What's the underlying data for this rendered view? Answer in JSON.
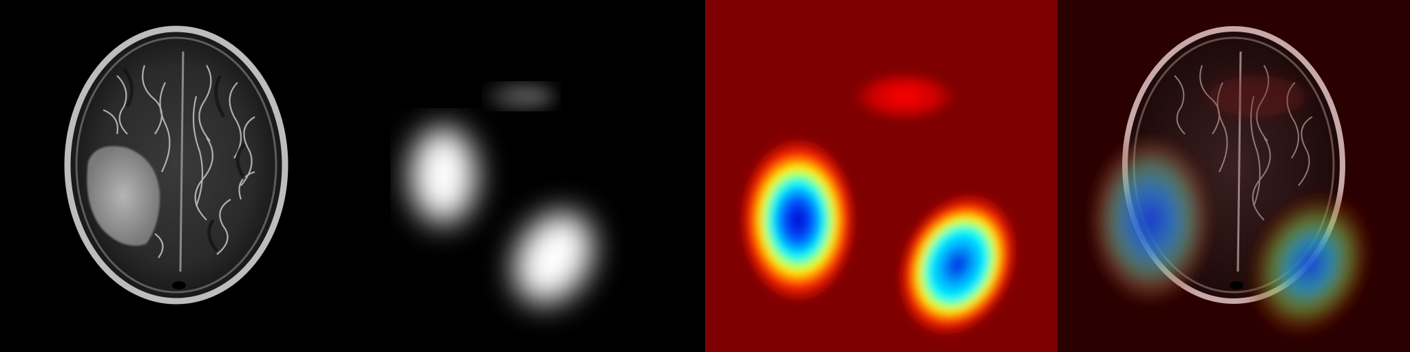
{
  "figure": {
    "panels": [
      {
        "id": "mri",
        "kind": "grayscale brain MRI axial slice"
      },
      {
        "id": "saliency-gray",
        "kind": "grayscale activation map"
      },
      {
        "id": "saliency-jet",
        "kind": "jet colormap activation map"
      },
      {
        "id": "overlay",
        "kind": "activation heatmap overlaid on MRI"
      }
    ],
    "colors": {
      "background": "#000000",
      "jet_low": "#7f0000",
      "jet_mid_red": "#ff0000",
      "jet_yellow": "#ffff00",
      "jet_cyan": "#00ffff",
      "jet_blue": "#0000cc"
    }
  }
}
